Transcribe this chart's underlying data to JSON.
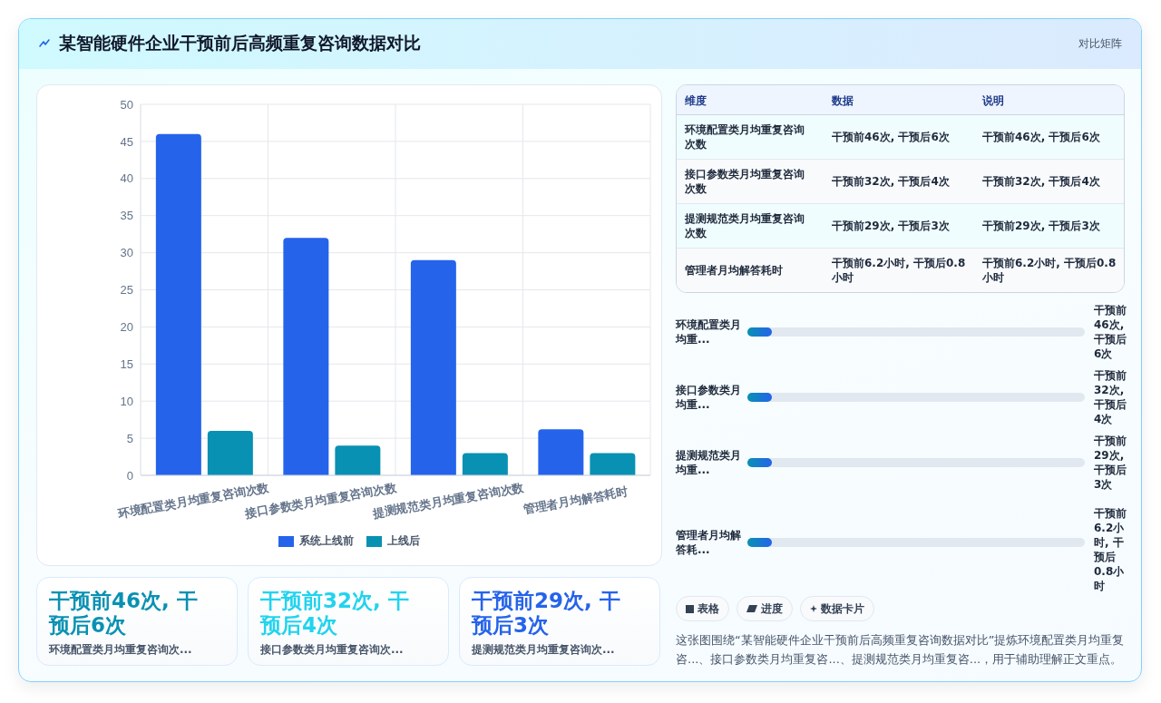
{
  "chart_data": [
    {
      "type": "other",
      "title": "某智能硬件企业干预前后高频重复咨询数据对比",
      "annotations": [
        "对比矩阵"
      ]
    },
    {
      "type": "bar",
      "categories": [
        "环境配置类月均重复咨询次数",
        "接口参数类月均重复咨询次数",
        "提测规范类月均重复咨询次数",
        "管理者月均解答耗时"
      ],
      "series": [
        {
          "name": "系统上线前",
          "color": "#2563eb",
          "values": [
            46,
            32,
            29,
            6.2
          ]
        },
        {
          "name": "上线后",
          "color": "#0891b2",
          "values": [
            6,
            4,
            3,
            3
          ]
        }
      ],
      "ylim": [
        0,
        50
      ],
      "yticks": [
        0,
        5,
        10,
        15,
        20,
        25,
        30,
        35,
        40,
        45,
        50
      ],
      "grid": true,
      "legend": "bottom"
    },
    {
      "type": "other",
      "categories": [
        "维度",
        "数据",
        "说明"
      ],
      "cell_labels": [
        [
          "环境配置类月均重复咨询次数",
          "干预前46次, 干预后6次",
          "干预前46次, 干预后6次"
        ],
        [
          "接口参数类月均重复咨询次数",
          "干预前32次, 干预后4次",
          "干预前32次, 干预后4次"
        ],
        [
          "提测规范类月均重复咨询次数",
          "干预前29次, 干预后3次",
          "干预前29次, 干预后3次"
        ],
        [
          "管理者月均解答耗时",
          "干预前6.2小时, 干预后0.8小时",
          "干预前6.2小时, 干预后0.8小时"
        ]
      ]
    },
    {
      "type": "other",
      "categories": [
        "环境配置类月均重...",
        "接口参数类月均重...",
        "提测规范类月均重...",
        "管理者月均解答耗..."
      ],
      "annotations": [
        "干预前46次, 干预后6次",
        "干预前32次, 干预后4次",
        "干预前29次, 干预后3次",
        "干预前6.2小时, 干预后0.8小时"
      ]
    },
    {
      "type": "other",
      "categories": [
        "环境配置类月均重复咨询次...",
        "接口参数类月均重复咨询次...",
        "提测规范类月均重复咨询次..."
      ],
      "annotations": [
        "干预前46次, 干预后6次",
        "干预前32次, 干预后4次",
        "干预前29次, 干预后3次"
      ]
    },
    {
      "type": "other",
      "categories": [
        "表格",
        "进度",
        "数据卡片"
      ],
      "annotations": [
        "这张图围绕“某智能硬件企业干预前后高频重复咨询数据对比”提炼环境配置类月均重复咨...、接口参数类月均重复咨...、提测规范类月均重复咨...，用于辅助理解正文重点。"
      ]
    }
  ]
}
